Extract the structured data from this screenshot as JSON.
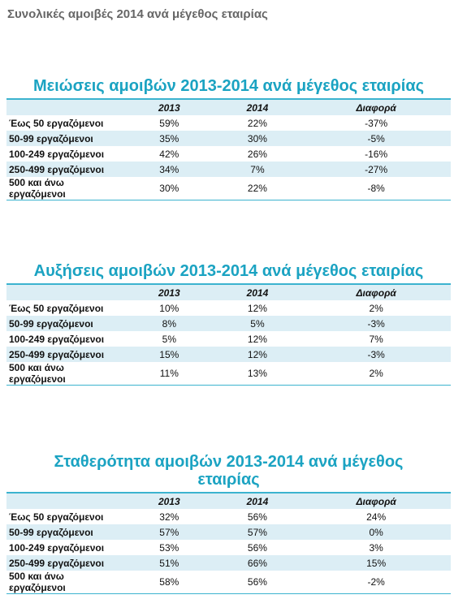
{
  "header": {
    "title": "Συνολικές αμοιβές 2014 ανά μέγεθος εταιρίας"
  },
  "tables": [
    {
      "title": "Μειώσεις αμοιβών 2013-2014 ανά μέγεθος εταιρίας",
      "columns": [
        "2013",
        "2014",
        "Διαφορά"
      ],
      "rows": [
        [
          "Έως 50 εργαζόμενοι",
          "59%",
          "22%",
          "-37%"
        ],
        [
          "50-99 εργαζόμενοι",
          "35%",
          "30%",
          "-5%"
        ],
        [
          "100-249 εργαζόμενοι",
          "42%",
          "26%",
          "-16%"
        ],
        [
          "250-499 εργαζόμενοι",
          "34%",
          "7%",
          "-27%"
        ],
        [
          "500 και άνω εργαζόμενοι",
          "30%",
          "22%",
          "-8%"
        ]
      ]
    },
    {
      "title": "Αυξήσεις αμοιβών 2013-2014 ανά μέγεθος εταιρίας",
      "columns": [
        "2013",
        "2014",
        "Διαφορά"
      ],
      "rows": [
        [
          "Έως 50 εργαζόμενοι",
          "10%",
          "12%",
          "2%"
        ],
        [
          "50-99 εργαζόμενοι",
          "8%",
          "5%",
          "-3%"
        ],
        [
          "100-249 εργαζόμενοι",
          "5%",
          "12%",
          "7%"
        ],
        [
          "250-499 εργαζόμενοι",
          "15%",
          "12%",
          "-3%"
        ],
        [
          "500 και άνω εργαζόμενοι",
          "11%",
          "13%",
          "2%"
        ]
      ]
    },
    {
      "title": "Σταθερότητα αμοιβών 2013-2014 ανά μέγεθος εταιρίας",
      "columns": [
        "2013",
        "2014",
        "Διαφορά"
      ],
      "rows": [
        [
          "Έως 50 εργαζόμενοι",
          "32%",
          "56%",
          "24%"
        ],
        [
          "50-99 εργαζόμενοι",
          "57%",
          "57%",
          "0%"
        ],
        [
          "100-249 εργαζόμενοι",
          "53%",
          "56%",
          "3%"
        ],
        [
          "250-499 εργαζόμενοι",
          "51%",
          "66%",
          "15%"
        ],
        [
          "500 και άνω εργαζόμενοι",
          "58%",
          "56%",
          "-2%"
        ]
      ]
    }
  ]
}
